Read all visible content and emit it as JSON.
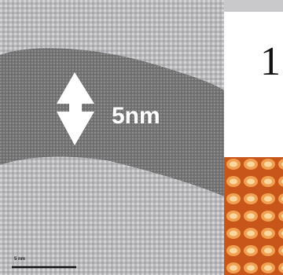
{
  "image": {
    "measurement_label": "5nm",
    "panel_label": "1",
    "scale_bar_label": "5 nm"
  }
}
